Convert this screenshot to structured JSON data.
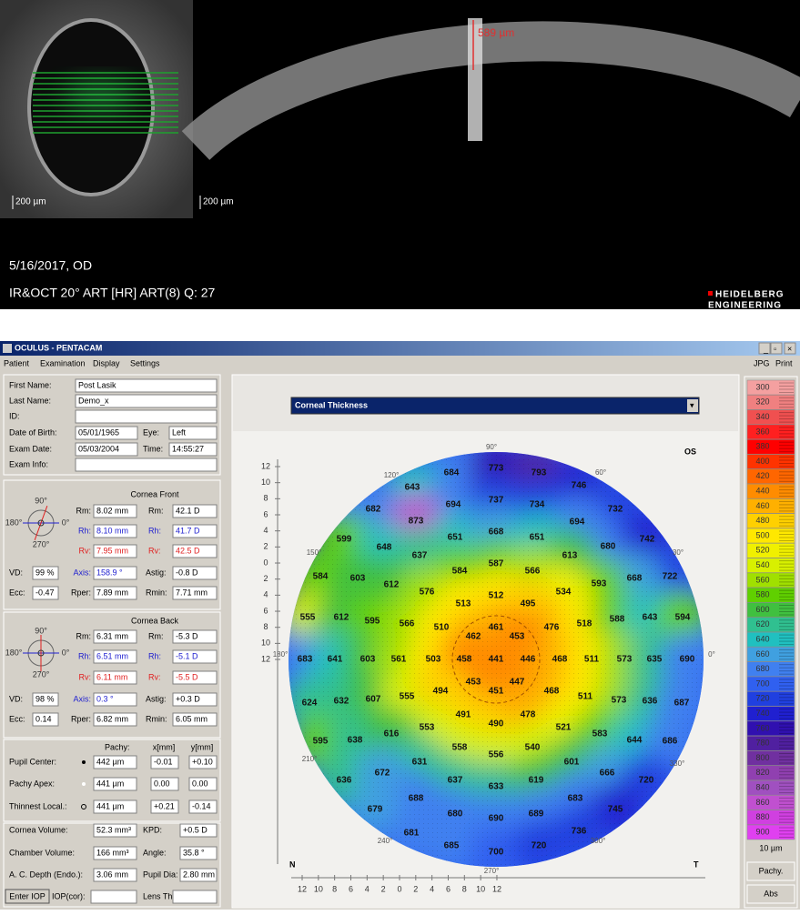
{
  "oct": {
    "ir_scale": "200 µm",
    "oct_scale": "200 µm",
    "thickness": "589 µm",
    "date": "5/16/2017, OD",
    "info": "IR&OCT 20° ART [HR] ART(8) Q: 27",
    "brand": [
      "HEIDELBERG",
      "ENGINEERING"
    ]
  },
  "pentacam": {
    "window_title": "OCULUS - PENTACAM",
    "menu": [
      "Patient",
      "Examination",
      "Display",
      "Settings"
    ],
    "tools": [
      "JPG",
      "Print"
    ],
    "patient": {
      "first_name": [
        "First Name:",
        "Post Lasik"
      ],
      "last_name": [
        "Last Name:",
        "Demo_x"
      ],
      "id": "ID:",
      "dob": [
        "Date of Birth:",
        "05/01/1965"
      ],
      "eye": [
        "Eye:",
        "Left"
      ],
      "exam_date": [
        "Exam Date:",
        "05/03/2004"
      ],
      "time": [
        "Time:",
        "14:55:27"
      ],
      "exam_info": "Exam Info:"
    },
    "front": {
      "header": "Cornea Front",
      "rows": [
        [
          "Rm:",
          "8.02 mm",
          "Rm:",
          "42.1 D"
        ],
        [
          "Rh:",
          "8.10 mm",
          "Rh:",
          "41.7 D"
        ],
        [
          "Rv:",
          "7.95 mm",
          "Rv:",
          "42.5 D"
        ]
      ],
      "vd": [
        "VD:",
        "99 %",
        "Axis:",
        "158.9 °",
        "Astig:",
        "-0.8 D"
      ],
      "ecc": [
        "Ecc:",
        "-0.47",
        "Rper:",
        "7.89 mm",
        "Rmin:",
        "7.71 mm"
      ]
    },
    "back": {
      "header": "Cornea Back",
      "rows": [
        [
          "Rm:",
          "6.31 mm",
          "Rm:",
          "-5.3 D"
        ],
        [
          "Rh:",
          "6.51 mm",
          "Rh:",
          "-5.1 D"
        ],
        [
          "Rv:",
          "6.11 mm",
          "Rv:",
          "-5.5 D"
        ]
      ],
      "vd": [
        "VD:",
        "98 %",
        "Axis:",
        "0.3 °",
        "Astig:",
        "+0.3 D"
      ],
      "ecc": [
        "Ecc:",
        "0.14",
        "Rper:",
        "6.82 mm",
        "Rmin:",
        "6.05 mm"
      ]
    },
    "compass": [
      "90°",
      "0°",
      "180°",
      "270°"
    ],
    "pachy": {
      "header": [
        "Pachy:",
        "x[mm]",
        "y[mm]"
      ],
      "rows": [
        [
          "Pupil Center:",
          "442 µm",
          "-0.01",
          "+0.10"
        ],
        [
          "Pachy Apex:",
          "441 µm",
          "0.00",
          "0.00"
        ],
        [
          "Thinnest Local.:",
          "441 µm",
          "+0.21",
          "-0.14"
        ]
      ]
    },
    "volumes": [
      [
        "Cornea Volume:",
        "52.3 mm³",
        "KPD:",
        "+0.5 D"
      ],
      [
        "Chamber Volume:",
        "166 mm³",
        "Angle:",
        "35.8 °"
      ],
      [
        "A. C. Depth (Endo.):",
        "3.06 mm",
        "Pupil Dia:",
        "2.80 mm"
      ]
    ],
    "iop": [
      "Enter IOP",
      "IOP(cor):",
      "Lens Th.:"
    ],
    "map": {
      "title": "Corneal Thickness",
      "eye": "OS",
      "nasal": "N",
      "temporal": "T",
      "angles": [
        "90°",
        "0°",
        "180°",
        "270°",
        "30°",
        "60°",
        "120°",
        "150°",
        "210°",
        "240°",
        "300°",
        "330°"
      ],
      "yticks": [
        12,
        10,
        8,
        6,
        4,
        2,
        0,
        2,
        4,
        6,
        8,
        10,
        12
      ],
      "xticks": [
        12,
        10,
        8,
        6,
        4,
        2,
        0,
        2,
        4,
        6,
        8,
        10,
        12
      ],
      "values": [
        684,
        773,
        793,
        746,
        643,
        694,
        737,
        734,
        732,
        682,
        873,
        694,
        599,
        651,
        668,
        651,
        680,
        742,
        648,
        637,
        613,
        722,
        584,
        603,
        612,
        584,
        587,
        566,
        668,
        593,
        576,
        534,
        555,
        612,
        595,
        566,
        510,
        513,
        512,
        495,
        476,
        518,
        588,
        643,
        594,
        461,
        453,
        462,
        683,
        641,
        603,
        561,
        503,
        458,
        441,
        446,
        468,
        511,
        573,
        635,
        690,
        453,
        447,
        451,
        624,
        632,
        607,
        555,
        494,
        468,
        511,
        573,
        636,
        687,
        491,
        490,
        478,
        553,
        521,
        595,
        638,
        616,
        583,
        644,
        686,
        558,
        556,
        540,
        631,
        601,
        636,
        672,
        637,
        633,
        619,
        666,
        720,
        688,
        683,
        679,
        680,
        690,
        689,
        745,
        681,
        736,
        685,
        700,
        720
      ]
    },
    "scale": {
      "values": [
        300,
        320,
        340,
        360,
        380,
        400,
        420,
        440,
        460,
        480,
        500,
        520,
        540,
        560,
        580,
        600,
        620,
        640,
        660,
        680,
        700,
        720,
        740,
        760,
        780,
        800,
        820,
        840,
        860,
        880,
        900
      ],
      "colors": [
        "#f4a0a0",
        "#f08080",
        "#f05050",
        "#ff2020",
        "#ff0000",
        "#ff3300",
        "#ff6600",
        "#ff8c00",
        "#ffb000",
        "#ffd000",
        "#ffe800",
        "#f0f000",
        "#d8f000",
        "#a0e000",
        "#60d000",
        "#40c040",
        "#30c090",
        "#20c0c0",
        "#40a0e0",
        "#4080f0",
        "#3060f0",
        "#2040e0",
        "#2020d0",
        "#3010b0",
        "#5020a0",
        "#7030a0",
        "#9040b0",
        "#a050c0",
        "#c050d0",
        "#d040e0",
        "#e040f0"
      ],
      "step": "10 µm",
      "buttons": [
        "Pachy.",
        "Abs"
      ]
    }
  }
}
